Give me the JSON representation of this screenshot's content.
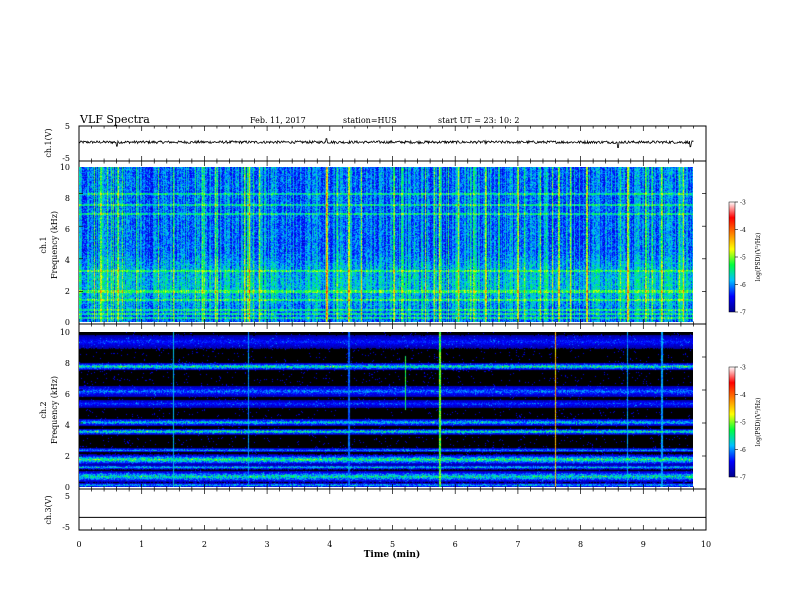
{
  "header": {
    "title": "VLF Spectra",
    "date": "Feb. 11, 2017",
    "station": "station=HUS",
    "start": "start  UT  =   23: 10: 2"
  },
  "colorbar": {
    "label": "log(PSD)(V²/Hz)",
    "ticks": [
      "-3",
      "-4",
      "-5",
      "-6",
      "-7"
    ],
    "colors": [
      "#00008c",
      "#0000ff",
      "#00bfff",
      "#00ff40",
      "#ffff00",
      "#ff8000",
      "#ff0000",
      "#ffffff"
    ]
  },
  "chart_data": [
    {
      "type": "line",
      "name": "ch.1(V)",
      "ylabel": "ch.1(V)",
      "ylim": [
        -5,
        5
      ],
      "yticks": [
        "5",
        "-5"
      ],
      "xlim": [
        0,
        10
      ],
      "baseline": 0.5,
      "noise_amplitude": 0.5,
      "spikes": [
        {
          "x": 0.6,
          "y": -1.0
        },
        {
          "x": 3.95,
          "y": 1.8
        },
        {
          "x": 8.6,
          "y": -1.5
        },
        {
          "x": 9.75,
          "y": -1.2
        }
      ]
    },
    {
      "type": "heatmap",
      "name": "ch.1",
      "ylabel": "ch.1 Frequency (kHz)",
      "ylim": [
        0,
        10
      ],
      "yticks": [
        "10",
        "8",
        "6",
        "4",
        "2",
        "0"
      ],
      "xlim": [
        0,
        9.8
      ],
      "color_scale": [
        -7,
        -3
      ],
      "background_log_psd": -6.1,
      "enhanced_band_khz": [
        0.5,
        4.5
      ],
      "horizontal_lines_khz": [
        0.3,
        0.55,
        0.8,
        1.45,
        2.0,
        3.3,
        7.0,
        7.6,
        8.3
      ],
      "bright_vertical_streaks_min": [
        0.35,
        0.62,
        1.5,
        2.7,
        3.95,
        4.3,
        5.15,
        5.75,
        6.05,
        6.3,
        6.7,
        7.0,
        7.55,
        7.65,
        8.1,
        8.75,
        9.05,
        9.3
      ]
    },
    {
      "type": "heatmap",
      "name": "ch.2",
      "ylabel": "ch.2 Frequency (kHz)",
      "ylim": [
        0,
        10
      ],
      "yticks": [
        "10",
        "8",
        "6",
        "4",
        "2",
        "0"
      ],
      "xlim": [
        0,
        9.8
      ],
      "color_scale": [
        -7,
        -3
      ],
      "background_log_psd": -7.0,
      "bands_khz": [
        {
          "f": 9.4,
          "w": 0.5,
          "level": 0.18
        },
        {
          "f": 7.8,
          "w": 0.25,
          "level": 0.42
        },
        {
          "f": 6.2,
          "w": 0.4,
          "level": 0.25
        },
        {
          "f": 5.4,
          "w": 0.3,
          "level": 0.2
        },
        {
          "f": 4.2,
          "w": 0.25,
          "level": 0.35
        },
        {
          "f": 3.6,
          "w": 0.2,
          "level": 0.42
        },
        {
          "f": 2.4,
          "w": 0.15,
          "level": 0.3
        },
        {
          "f": 1.8,
          "w": 0.35,
          "level": 0.45
        },
        {
          "f": 1.3,
          "w": 0.15,
          "level": 0.35
        },
        {
          "f": 0.7,
          "w": 0.4,
          "level": 0.4
        },
        {
          "f": 0.15,
          "w": 0.15,
          "level": 0.35
        }
      ],
      "vertical_streaks_min": [
        {
          "x": 1.5,
          "f0": 0,
          "f1": 10,
          "level": 0.35
        },
        {
          "x": 2.7,
          "f0": 0,
          "f1": 10,
          "level": 0.3
        },
        {
          "x": 4.3,
          "f0": 0,
          "f1": 10,
          "level": 0.25
        },
        {
          "x": 5.2,
          "f0": 5,
          "f1": 8.5,
          "level": 0.5
        },
        {
          "x": 5.75,
          "f0": 0,
          "f1": 10,
          "level": 0.55
        },
        {
          "x": 7.6,
          "f0": 0,
          "f1": 10,
          "level": 0.75
        },
        {
          "x": 8.75,
          "f0": 0,
          "f1": 10,
          "level": 0.3
        },
        {
          "x": 9.3,
          "f0": 0,
          "f1": 10,
          "level": 0.3
        }
      ]
    },
    {
      "type": "line",
      "name": "ch.3(V)",
      "ylabel": "ch.3(V)",
      "ylim": [
        -5,
        5
      ],
      "yticks": [
        "5",
        "-5"
      ],
      "xlim": [
        0,
        10
      ],
      "baseline": -1.5
    }
  ],
  "xaxis": {
    "label": "Time  (min)",
    "ticks": [
      "0",
      "1",
      "2",
      "3",
      "4",
      "5",
      "6",
      "7",
      "8",
      "9",
      "10"
    ]
  }
}
